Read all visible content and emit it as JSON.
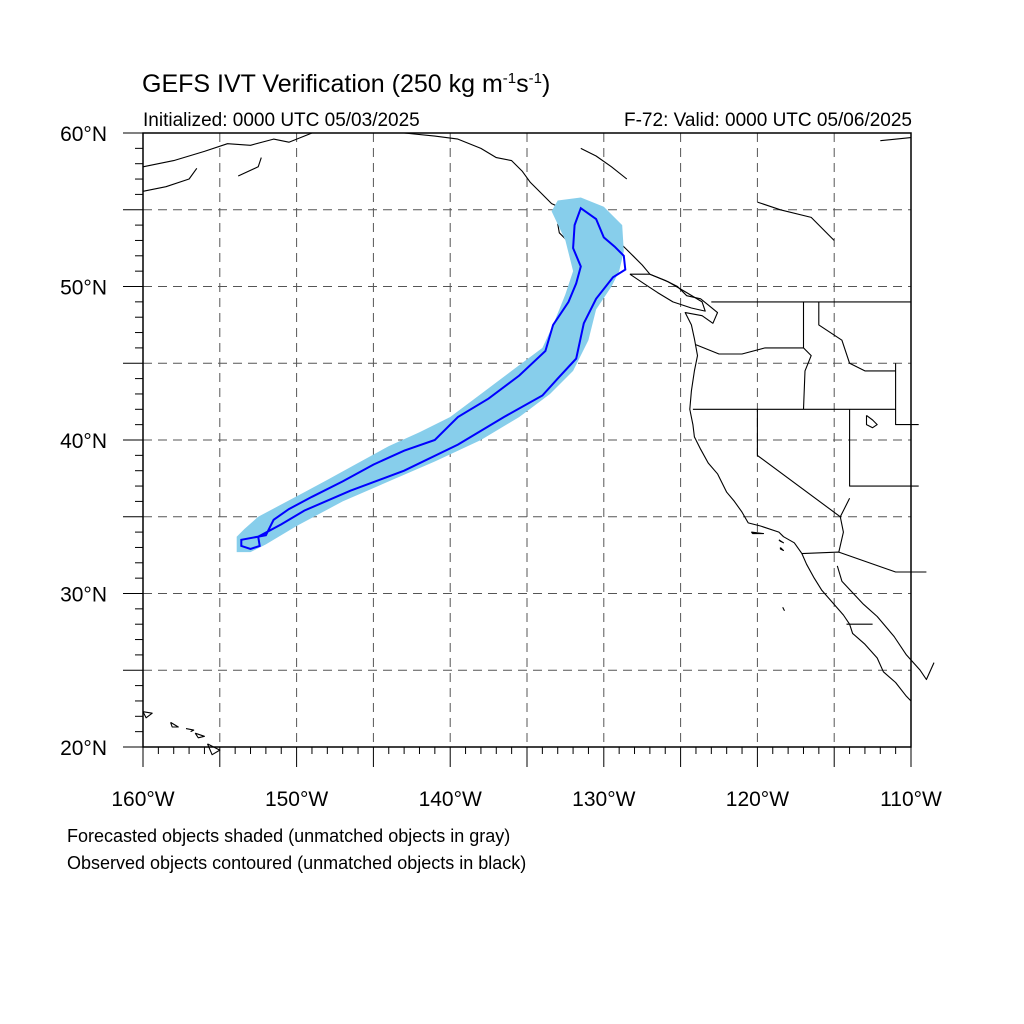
{
  "header": {
    "title": "GEFS IVT Verification (250 kg m",
    "title_exp1": "-1",
    "title_mid": "s",
    "title_exp2": "-1",
    "title_end": ")",
    "init_text": "Initialized: 0000 UTC 05/03/2025",
    "valid_text": "F-72: Valid: 0000 UTC 05/06/2025"
  },
  "map": {
    "lon_range": [
      -160,
      -110
    ],
    "lat_range": [
      20,
      60
    ],
    "lat_labels": [
      {
        "lat": 60,
        "label": "60°N"
      },
      {
        "lat": 50,
        "label": "50°N"
      },
      {
        "lat": 40,
        "label": "40°N"
      },
      {
        "lat": 30,
        "label": "30°N"
      },
      {
        "lat": 20,
        "label": "20°N"
      }
    ],
    "lon_labels": [
      {
        "lon": -160,
        "label": "160°W"
      },
      {
        "lon": -150,
        "label": "150°W"
      },
      {
        "lon": -140,
        "label": "140°W"
      },
      {
        "lon": -130,
        "label": "130°W"
      },
      {
        "lon": -120,
        "label": "120°W"
      },
      {
        "lon": -110,
        "label": "110°W"
      }
    ],
    "grid_lons": [
      -155,
      -150,
      -145,
      -140,
      -135,
      -130,
      -125,
      -120,
      -115
    ],
    "grid_lats": [
      25,
      30,
      35,
      40,
      45,
      50,
      55
    ],
    "colors": {
      "forecast_fill": "#87ceeb",
      "observed_contour": "#0000ff",
      "coastline": "#000000",
      "grid": "#555555"
    },
    "forecast_object": [
      [
        -153.9,
        32.7
      ],
      [
        -153.9,
        33.7
      ],
      [
        -153.4,
        34.2
      ],
      [
        -152.5,
        35.0
      ],
      [
        -151.0,
        35.8
      ],
      [
        -149.5,
        36.6
      ],
      [
        -148.0,
        37.4
      ],
      [
        -146.0,
        38.5
      ],
      [
        -144.0,
        39.6
      ],
      [
        -142.0,
        40.5
      ],
      [
        -140.0,
        41.5
      ],
      [
        -138.0,
        43.0
      ],
      [
        -136.0,
        44.5
      ],
      [
        -134.0,
        46.0
      ],
      [
        -133.3,
        47.5
      ],
      [
        -132.5,
        49.5
      ],
      [
        -132.0,
        51.0
      ],
      [
        -132.5,
        53.0
      ],
      [
        -133.4,
        54.9
      ],
      [
        -133.0,
        55.6
      ],
      [
        -131.5,
        55.8
      ],
      [
        -130.0,
        55.2
      ],
      [
        -128.8,
        54.0
      ],
      [
        -128.7,
        52.3
      ],
      [
        -129.0,
        51.0
      ],
      [
        -129.5,
        50.0
      ],
      [
        -130.5,
        48.5
      ],
      [
        -131.0,
        46.5
      ],
      [
        -132.0,
        44.5
      ],
      [
        -133.5,
        43.0
      ],
      [
        -135.5,
        41.5
      ],
      [
        -138.0,
        40.0
      ],
      [
        -141.0,
        38.6
      ],
      [
        -144.0,
        37.3
      ],
      [
        -147.0,
        36.0
      ],
      [
        -150.0,
        34.4
      ],
      [
        -152.0,
        33.2
      ],
      [
        -153.0,
        32.7
      ]
    ],
    "observed_object": [
      [
        -153.6,
        33.1
      ],
      [
        -153.6,
        33.5
      ],
      [
        -152.0,
        33.8
      ],
      [
        -151.5,
        34.8
      ],
      [
        -150.5,
        35.5
      ],
      [
        -149.0,
        36.3
      ],
      [
        -147.0,
        37.3
      ],
      [
        -145.0,
        38.4
      ],
      [
        -143.0,
        39.3
      ],
      [
        -141.0,
        40.0
      ],
      [
        -139.5,
        41.5
      ],
      [
        -137.5,
        42.7
      ],
      [
        -135.5,
        44.2
      ],
      [
        -133.8,
        45.8
      ],
      [
        -133.3,
        47.5
      ],
      [
        -132.3,
        49.0
      ],
      [
        -131.8,
        50.2
      ],
      [
        -131.5,
        51.3
      ],
      [
        -132.0,
        52.5
      ],
      [
        -131.9,
        54.0
      ],
      [
        -131.5,
        55.1
      ],
      [
        -130.5,
        54.4
      ],
      [
        -130.0,
        53.2
      ],
      [
        -129.3,
        52.6
      ],
      [
        -128.7,
        52.0
      ],
      [
        -128.6,
        51.1
      ],
      [
        -129.4,
        50.6
      ],
      [
        -130.5,
        49.2
      ],
      [
        -131.3,
        47.6
      ],
      [
        -131.8,
        45.3
      ],
      [
        -133.0,
        44.0
      ],
      [
        -134.0,
        42.9
      ],
      [
        -136.5,
        41.5
      ],
      [
        -139.5,
        39.7
      ],
      [
        -143.0,
        38.0
      ],
      [
        -146.5,
        36.7
      ],
      [
        -149.5,
        35.4
      ],
      [
        -151.0,
        34.5
      ],
      [
        -152.5,
        33.7
      ],
      [
        -152.4,
        33.1
      ],
      [
        -153.0,
        32.9
      ]
    ]
  },
  "captions": {
    "line1": "Forecasted objects shaded (unmatched objects in gray)",
    "line2": "Observed objects contoured (unmatched objects in black)"
  }
}
